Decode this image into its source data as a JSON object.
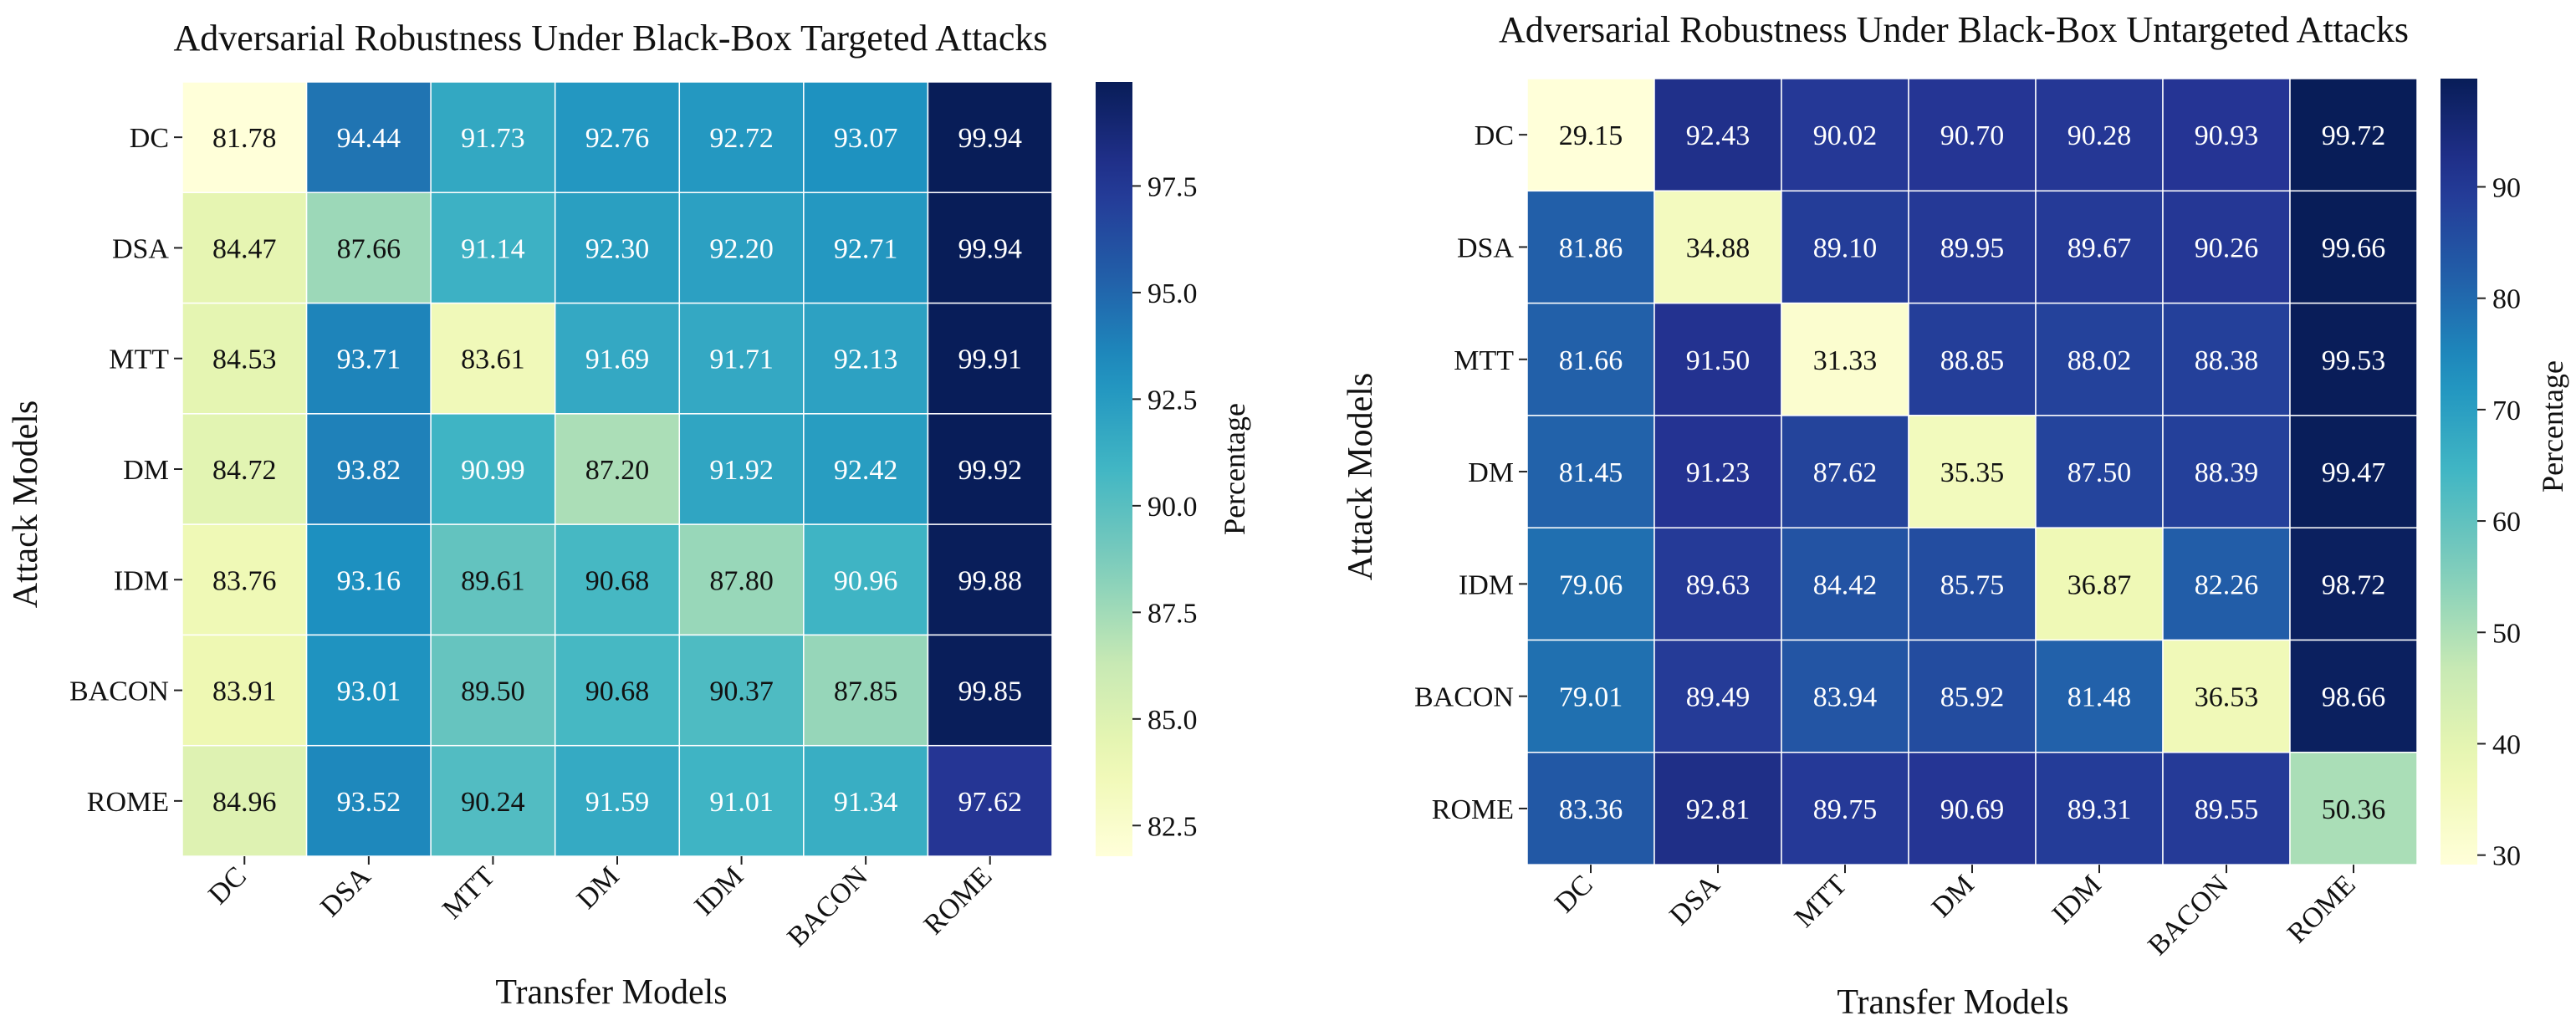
{
  "colormap": {
    "name": "YlGnBu",
    "stops": [
      "#ffffd9",
      "#edf8b1",
      "#c7e9b4",
      "#7fcdbb",
      "#41b6c4",
      "#1d91c0",
      "#225ea8",
      "#253494",
      "#081d58"
    ]
  },
  "chart_data": [
    {
      "type": "heatmap",
      "title": "Adversarial Robustness Under Black-Box Targeted Attacks",
      "xlabel": "Transfer Models",
      "ylabel": "Attack Models",
      "x_categories": [
        "DC",
        "DSA",
        "MTT",
        "DM",
        "IDM",
        "BACON",
        "ROME"
      ],
      "y_categories": [
        "DC",
        "DSA",
        "MTT",
        "DM",
        "IDM",
        "BACON",
        "ROME"
      ],
      "values": [
        [
          81.78,
          94.44,
          91.73,
          92.76,
          92.72,
          93.07,
          99.94
        ],
        [
          84.47,
          87.66,
          91.14,
          92.3,
          92.2,
          92.71,
          99.94
        ],
        [
          84.53,
          93.71,
          83.61,
          91.69,
          91.71,
          92.13,
          99.91
        ],
        [
          84.72,
          93.82,
          90.99,
          87.2,
          91.92,
          92.42,
          99.92
        ],
        [
          83.76,
          93.16,
          89.61,
          90.68,
          87.8,
          90.96,
          99.88
        ],
        [
          83.91,
          93.01,
          89.5,
          90.68,
          90.37,
          87.85,
          99.85
        ],
        [
          84.96,
          93.52,
          90.24,
          91.59,
          91.01,
          91.34,
          97.62
        ]
      ],
      "value_labels": [
        [
          "81.78",
          "94.44",
          "91.73",
          "92.76",
          "92.72",
          "93.07",
          "99.94"
        ],
        [
          "84.47",
          "87.66",
          "91.14",
          "92.30",
          "92.20",
          "92.71",
          "99.94"
        ],
        [
          "84.53",
          "93.71",
          "83.61",
          "91.69",
          "91.71",
          "92.13",
          "99.91"
        ],
        [
          "84.72",
          "93.82",
          "90.99",
          "87.20",
          "91.92",
          "92.42",
          "99.92"
        ],
        [
          "83.76",
          "93.16",
          "89.61",
          "90.68",
          "87.80",
          "90.96",
          "99.88"
        ],
        [
          "83.91",
          "93.01",
          "89.50",
          "90.68",
          "90.37",
          "87.85",
          "99.85"
        ],
        [
          "84.96",
          "93.52",
          "90.24",
          "91.59",
          "91.01",
          "91.34",
          "97.62"
        ]
      ],
      "colorbar": {
        "label": "Percentage",
        "range": [
          81.78,
          99.94
        ],
        "ticks": [
          82.5,
          85.0,
          87.5,
          90.0,
          92.5,
          95.0,
          97.5
        ],
        "tick_labels": [
          "82.5",
          "85.0",
          "87.5",
          "90.0",
          "92.5",
          "95.0",
          "97.5"
        ]
      }
    },
    {
      "type": "heatmap",
      "title": "Adversarial Robustness Under Black-Box Untargeted Attacks",
      "xlabel": "Transfer Models",
      "ylabel": "Attack Models",
      "x_categories": [
        "DC",
        "DSA",
        "MTT",
        "DM",
        "IDM",
        "BACON",
        "ROME"
      ],
      "y_categories": [
        "DC",
        "DSA",
        "MTT",
        "DM",
        "IDM",
        "BACON",
        "ROME"
      ],
      "values": [
        [
          29.15,
          92.43,
          90.02,
          90.7,
          90.28,
          90.93,
          99.72
        ],
        [
          81.86,
          34.88,
          89.1,
          89.95,
          89.67,
          90.26,
          99.66
        ],
        [
          81.66,
          91.5,
          31.33,
          88.85,
          88.02,
          88.38,
          99.53
        ],
        [
          81.45,
          91.23,
          87.62,
          35.35,
          87.5,
          88.39,
          99.47
        ],
        [
          79.06,
          89.63,
          84.42,
          85.75,
          36.87,
          82.26,
          98.72
        ],
        [
          79.01,
          89.49,
          83.94,
          85.92,
          81.48,
          36.53,
          98.66
        ],
        [
          83.36,
          92.81,
          89.75,
          90.69,
          89.31,
          89.55,
          50.36
        ]
      ],
      "value_labels": [
        [
          "29.15",
          "92.43",
          "90.02",
          "90.70",
          "90.28",
          "90.93",
          "99.72"
        ],
        [
          "81.86",
          "34.88",
          "89.10",
          "89.95",
          "89.67",
          "90.26",
          "99.66"
        ],
        [
          "81.66",
          "91.50",
          "31.33",
          "88.85",
          "88.02",
          "88.38",
          "99.53"
        ],
        [
          "81.45",
          "91.23",
          "87.62",
          "35.35",
          "87.50",
          "88.39",
          "99.47"
        ],
        [
          "79.06",
          "89.63",
          "84.42",
          "85.75",
          "36.87",
          "82.26",
          "98.72"
        ],
        [
          "79.01",
          "89.49",
          "83.94",
          "85.92",
          "81.48",
          "36.53",
          "98.66"
        ],
        [
          "83.36",
          "92.81",
          "89.75",
          "90.69",
          "89.31",
          "89.55",
          "50.36"
        ]
      ],
      "colorbar": {
        "label": "Percentage",
        "range": [
          29.15,
          99.72
        ],
        "ticks": [
          30,
          40,
          50,
          60,
          70,
          80,
          90
        ],
        "tick_labels": [
          "30",
          "40",
          "50",
          "60",
          "70",
          "80",
          "90"
        ]
      }
    }
  ]
}
